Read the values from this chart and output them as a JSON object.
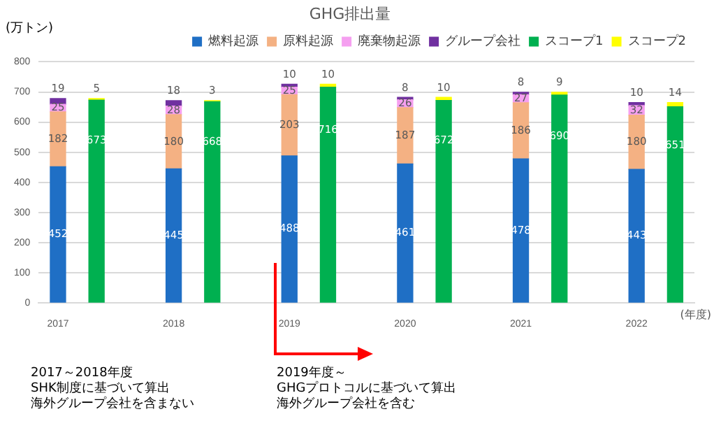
{
  "chart_data": {
    "type": "bar",
    "title": "GHG排出量",
    "ylabel": "(万トン)",
    "xlabel": "(年度)",
    "categories": [
      "2017",
      null,
      null,
      "2018",
      null,
      null,
      "2019",
      null,
      null,
      "2020",
      null,
      null,
      "2021",
      null,
      null,
      "2022",
      null
    ],
    "stacked": true,
    "data_labels": true,
    "grid": "y",
    "legend": "top",
    "ylim": [
      0,
      800
    ],
    "yticks": [
      0,
      100,
      200,
      300,
      400,
      500,
      600,
      700,
      800
    ],
    "series": [
      {
        "name": "燃料起源",
        "color": "#1f6fc5",
        "values": [
          452,
          null,
          null,
          445,
          null,
          null,
          488,
          null,
          null,
          461,
          null,
          null,
          478,
          null,
          null,
          443,
          null
        ]
      },
      {
        "name": "原料起源",
        "color": "#f4b183",
        "values": [
          182,
          null,
          null,
          180,
          null,
          null,
          203,
          null,
          null,
          187,
          null,
          null,
          186,
          null,
          null,
          180,
          null
        ]
      },
      {
        "name": "廃棄物起源",
        "color": "#f59ff0",
        "values": [
          25,
          null,
          null,
          28,
          null,
          null,
          25,
          null,
          null,
          26,
          null,
          null,
          27,
          null,
          null,
          32,
          null
        ]
      },
      {
        "name": "グループ会社",
        "color": "#7030a0",
        "values": [
          19,
          null,
          null,
          18,
          null,
          null,
          10,
          null,
          null,
          8,
          null,
          null,
          8,
          null,
          null,
          10,
          null
        ]
      },
      {
        "name": "スコープ1",
        "color": "#00b050",
        "values": [
          null,
          673,
          null,
          null,
          668,
          null,
          null,
          716,
          null,
          null,
          672,
          null,
          null,
          690,
          null,
          null,
          651
        ]
      },
      {
        "name": "スコープ2",
        "color": "#ffff00",
        "values": [
          null,
          5,
          null,
          null,
          3,
          null,
          null,
          10,
          null,
          null,
          10,
          null,
          null,
          9,
          null,
          null,
          14
        ]
      }
    ],
    "annotations": [
      "2017～2018年度",
      "SHK制度に基づいて算出",
      "海外グループ会社を含まない",
      "2019年度～",
      "GHGプロトコルに基づいて算出",
      "海外グループ会社を含む"
    ]
  }
}
